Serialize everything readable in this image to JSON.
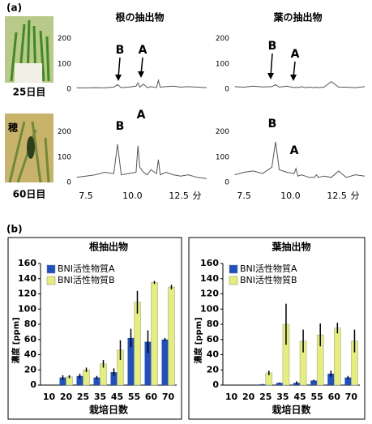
{
  "panels": {
    "a": "(a)",
    "b": "(b)"
  },
  "photos": [
    {
      "day": "25日目"
    },
    {
      "day": "60日目",
      "label": "穂"
    }
  ],
  "chart_data": [
    {
      "type": "line",
      "title": "根の抽出物",
      "annotations": [
        "B",
        "A"
      ],
      "x": [
        7,
        7.5,
        8,
        8.5,
        9,
        9.2,
        9.4,
        9.8,
        10.2,
        10.3,
        10.4,
        10.6,
        10.8,
        11,
        11.3,
        11.4,
        11.5,
        11.8,
        12.2,
        12.6,
        13,
        13.5,
        14
      ],
      "series": [
        {
          "color": "#555555",
          "values": [
            5,
            5,
            6,
            5,
            8,
            18,
            6,
            8,
            12,
            25,
            8,
            20,
            6,
            10,
            6,
            35,
            8,
            10,
            12,
            8,
            10,
            8,
            6
          ]
        }
      ],
      "xlim": [
        6.8,
        14
      ],
      "ylim": [
        0,
        240
      ],
      "yticks": [
        0,
        100,
        200
      ]
    },
    {
      "type": "line",
      "title": "葉の抽出物",
      "annotations": [
        "B",
        "A"
      ],
      "x": [
        7,
        7.5,
        8,
        8.5,
        9,
        9.2,
        9.4,
        9.8,
        10.2,
        10.3,
        10.4,
        10.6,
        10.8,
        11,
        11.3,
        11.4,
        11.5,
        11.8,
        12.2,
        12.6,
        13,
        13.5,
        14
      ],
      "series": [
        {
          "color": "#555555",
          "values": [
            10,
            8,
            12,
            9,
            10,
            18,
            8,
            12,
            6,
            8,
            6,
            10,
            6,
            8,
            6,
            8,
            6,
            8,
            30,
            8,
            8,
            6,
            10
          ]
        }
      ],
      "xlim": [
        6.8,
        14
      ],
      "ylim": [
        0,
        240
      ],
      "yticks": [
        0,
        100,
        200
      ]
    },
    {
      "type": "line",
      "annotations": [
        "B",
        "A"
      ],
      "xlabel": "分",
      "x": [
        7,
        7.5,
        8,
        8.5,
        9,
        9.2,
        9.4,
        9.8,
        10.2,
        10.3,
        10.4,
        10.6,
        10.8,
        11,
        11.3,
        11.4,
        11.5,
        11.8,
        12.2,
        12.6,
        13,
        13.5,
        14
      ],
      "series": [
        {
          "color": "#555555",
          "values": [
            20,
            25,
            30,
            40,
            35,
            150,
            30,
            35,
            40,
            145,
            60,
            40,
            30,
            50,
            35,
            90,
            30,
            40,
            30,
            25,
            30,
            20,
            15
          ]
        }
      ],
      "xlim": [
        6.8,
        14
      ],
      "ylim": [
        0,
        240
      ],
      "yticks": [
        0,
        100,
        200
      ],
      "xticks": [
        7.5,
        {
          "value": 10,
          "label": "10.0"
        },
        12.5
      ]
    },
    {
      "type": "line",
      "annotations": [
        "B",
        "A"
      ],
      "xlabel": "分",
      "x": [
        7,
        7.5,
        8,
        8.5,
        9,
        9.2,
        9.4,
        9.8,
        10.2,
        10.3,
        10.4,
        10.6,
        10.8,
        11,
        11.3,
        11.4,
        11.5,
        11.8,
        12.2,
        12.6,
        13,
        13.5,
        14
      ],
      "series": [
        {
          "color": "#555555",
          "values": [
            30,
            40,
            45,
            35,
            60,
            160,
            50,
            40,
            35,
            55,
            25,
            30,
            25,
            20,
            20,
            30,
            20,
            25,
            20,
            45,
            20,
            30,
            25
          ]
        }
      ],
      "xlim": [
        6.8,
        14
      ],
      "ylim": [
        0,
        240
      ],
      "yticks": [
        0,
        100,
        200
      ],
      "xticks": [
        7.5,
        {
          "value": 10,
          "label": "10.0"
        },
        12.5
      ]
    },
    {
      "type": "bar",
      "title": "根抽出物",
      "xlabel": "栽培日数",
      "ylabel": "濃度 [ppm]",
      "categories": [
        "10",
        "20",
        "25",
        "35",
        "45",
        "55",
        "60",
        "70"
      ],
      "series": [
        {
          "name": "BNI活性物質A",
          "color": "#1f4fc0",
          "values": [
            0,
            10,
            12,
            10,
            17,
            62,
            57,
            60
          ],
          "errors": [
            0,
            3,
            3,
            2,
            5,
            12,
            15,
            2
          ]
        },
        {
          "name": "BNI活性物質B",
          "color": "#e4ee78",
          "values": [
            0,
            11,
            20,
            28,
            46,
            109,
            135,
            129
          ],
          "errors": [
            0,
            2,
            3,
            5,
            13,
            15,
            2,
            3
          ]
        }
      ],
      "ylim": [
        0,
        160
      ],
      "yticks": [
        0,
        20,
        40,
        60,
        80,
        100,
        120,
        140,
        160
      ]
    },
    {
      "type": "bar",
      "title": "葉抽出物",
      "xlabel": "栽培日数",
      "ylabel": "濃度 [ppm]",
      "categories": [
        "10",
        "20",
        "25",
        "35",
        "45",
        "55",
        "60",
        "70"
      ],
      "series": [
        {
          "name": "BNI活性物質A",
          "color": "#1f4fc0",
          "values": [
            0,
            0,
            1,
            3,
            3,
            6,
            15,
            10
          ],
          "errors": [
            0,
            0,
            0.5,
            0.5,
            2,
            1,
            4,
            2
          ]
        },
        {
          "name": "BNI活性物質B",
          "color": "#e4ee78",
          "values": [
            0,
            0,
            16,
            80,
            58,
            66,
            75,
            58
          ],
          "errors": [
            0,
            0,
            3,
            27,
            15,
            15,
            7,
            15
          ]
        }
      ],
      "ylim": [
        0,
        160
      ],
      "yticks": [
        0,
        20,
        40,
        60,
        80,
        100,
        120,
        140,
        160
      ]
    }
  ]
}
